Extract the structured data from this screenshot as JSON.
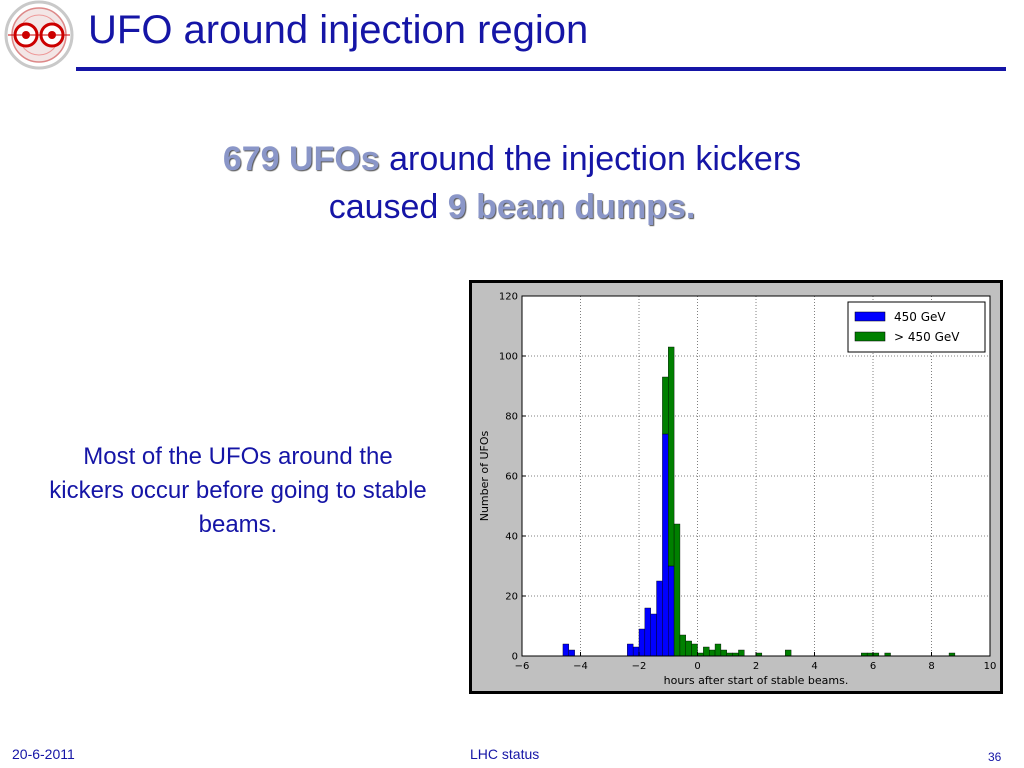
{
  "slide": {
    "title": "UFO around injection region",
    "headline_line1_emph": "679 UFOs",
    "headline_line1_rest": " around the injection kickers",
    "headline_line2_pre": "caused ",
    "headline_line2_emph": "9 beam dumps.",
    "side_text": "Most of the UFOs around the kickers occur before going to stable beams.",
    "colors": {
      "title": "#1515a6",
      "emphasis": "#8a96c8"
    }
  },
  "footer": {
    "date": "20-6-2011",
    "center": "LHC status",
    "page": "36"
  },
  "chart_data": {
    "type": "bar",
    "stacked": true,
    "xlabel": "hours after start of stable beams.",
    "ylabel": "Number of UFOs",
    "xlim": [
      -6,
      10
    ],
    "ylim": [
      0,
      120
    ],
    "xticks": [
      -6,
      -4,
      -2,
      0,
      2,
      4,
      6,
      8,
      10
    ],
    "xtick_labels": [
      "−6",
      "−4",
      "−2",
      "0",
      "2",
      "4",
      "6",
      "8",
      "10"
    ],
    "yticks": [
      0,
      20,
      40,
      60,
      80,
      100,
      120
    ],
    "bin_width": 0.2,
    "grid": true,
    "legend_position": "top-right",
    "series": [
      {
        "name": "450 GeV",
        "color": "#0000ff",
        "points": [
          [
            -4.5,
            4
          ],
          [
            -4.3,
            2
          ],
          [
            -2.3,
            4
          ],
          [
            -2.1,
            3
          ],
          [
            -1.9,
            9
          ],
          [
            -1.7,
            16
          ],
          [
            -1.5,
            14
          ],
          [
            -1.3,
            25
          ],
          [
            -1.1,
            74
          ],
          [
            -0.9,
            30
          ]
        ]
      },
      {
        "name": "> 450 GeV",
        "color": "#008000",
        "points": [
          [
            -1.1,
            19
          ],
          [
            -0.9,
            73
          ],
          [
            -0.7,
            44
          ],
          [
            -0.5,
            7
          ],
          [
            -0.3,
            5
          ],
          [
            -0.1,
            4
          ],
          [
            0.1,
            1
          ],
          [
            0.3,
            3
          ],
          [
            0.5,
            2
          ],
          [
            0.7,
            4
          ],
          [
            0.9,
            2
          ],
          [
            1.1,
            1
          ],
          [
            1.3,
            1
          ],
          [
            1.5,
            2
          ],
          [
            2.1,
            1
          ],
          [
            3.1,
            2
          ],
          [
            5.7,
            1
          ],
          [
            5.9,
            1
          ],
          [
            6.1,
            1
          ],
          [
            6.5,
            1
          ],
          [
            8.7,
            1
          ]
        ]
      }
    ]
  }
}
